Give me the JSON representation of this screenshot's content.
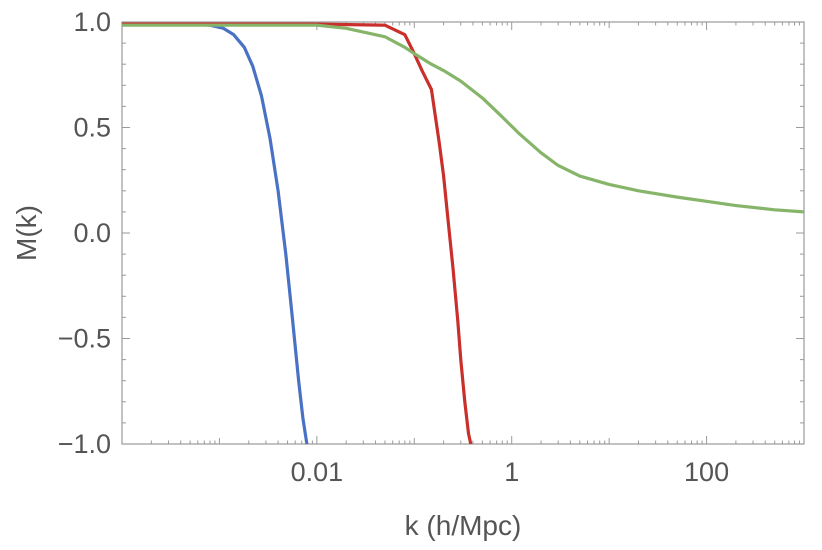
{
  "chart_data": {
    "type": "line",
    "title": "",
    "xlabel": "k  (h/Mpc)",
    "ylabel": "M(k)",
    "xscale": "log",
    "xlim": [
      0.0001,
      1000
    ],
    "ylim": [
      -1.0,
      1.0
    ],
    "x_tick_labels": [
      {
        "value": 0.01,
        "label": "0.01"
      },
      {
        "value": 1,
        "label": "1"
      },
      {
        "value": 100,
        "label": "100"
      }
    ],
    "y_tick_labels": [
      {
        "value": 1.0,
        "label": "1.0"
      },
      {
        "value": 0.5,
        "label": "0.5"
      },
      {
        "value": 0.0,
        "label": "0.0"
      },
      {
        "value": -0.5,
        "label": "−0.5"
      },
      {
        "value": -1.0,
        "label": "−1.0"
      }
    ],
    "grid": false,
    "legend": "none",
    "series": [
      {
        "color": "#4a72c4",
        "x": [
          0.0001,
          0.0005,
          0.0008,
          0.0011,
          0.0014,
          0.0018,
          0.0022,
          0.0027,
          0.0033,
          0.004,
          0.0048,
          0.0056,
          0.0065,
          0.0072,
          0.0079
        ],
        "y": [
          0.99,
          0.99,
          0.985,
          0.97,
          0.94,
          0.88,
          0.79,
          0.65,
          0.45,
          0.2,
          -0.1,
          -0.4,
          -0.7,
          -0.88,
          -1.0
        ]
      },
      {
        "color": "#c9302c",
        "x": [
          0.0001,
          0.01,
          0.05,
          0.08,
          0.1,
          0.12,
          0.15,
          0.18,
          0.2,
          0.22,
          0.25,
          0.28,
          0.3,
          0.33,
          0.36,
          0.38
        ],
        "y": [
          0.99,
          0.99,
          0.985,
          0.94,
          0.85,
          0.77,
          0.68,
          0.43,
          0.27,
          0.08,
          -0.17,
          -0.42,
          -0.6,
          -0.8,
          -0.95,
          -1.0
        ]
      },
      {
        "color": "#86b56a",
        "x": [
          0.0001,
          0.01,
          0.02,
          0.05,
          0.08,
          0.1,
          0.15,
          0.2,
          0.3,
          0.5,
          0.8,
          1.2,
          2,
          3,
          5,
          10,
          20,
          50,
          100,
          200,
          500,
          1000
        ],
        "y": [
          0.985,
          0.985,
          0.97,
          0.93,
          0.88,
          0.85,
          0.8,
          0.77,
          0.72,
          0.64,
          0.55,
          0.47,
          0.38,
          0.32,
          0.27,
          0.23,
          0.2,
          0.17,
          0.15,
          0.13,
          0.11,
          0.1
        ]
      }
    ]
  }
}
